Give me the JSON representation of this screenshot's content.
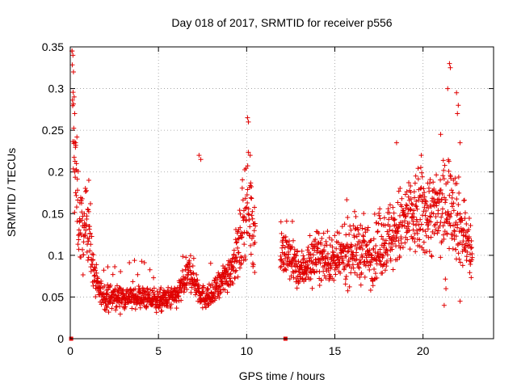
{
  "chart_data": {
    "type": "scatter",
    "title": "Day 018 of 2017, SRMTID for receiver p556",
    "xlabel": "GPS time / hours",
    "ylabel": "SRMTID / TECUs",
    "xlim": [
      0,
      24
    ],
    "ylim": [
      0,
      0.35
    ],
    "x_ticks": [
      {
        "value": 0,
        "label": "0"
      },
      {
        "value": 5,
        "label": "5"
      },
      {
        "value": 10,
        "label": "10"
      },
      {
        "value": 15,
        "label": "15"
      },
      {
        "value": 20,
        "label": "20"
      }
    ],
    "y_ticks": [
      {
        "value": 0,
        "label": "0"
      },
      {
        "value": 0.05,
        "label": "0.05"
      },
      {
        "value": 0.1,
        "label": "0.1"
      },
      {
        "value": 0.15,
        "label": "0.15"
      },
      {
        "value": 0.2,
        "label": "0.2"
      },
      {
        "value": 0.25,
        "label": "0.25"
      },
      {
        "value": 0.3,
        "label": "0.3"
      },
      {
        "value": 0.35,
        "label": "0.35"
      }
    ],
    "grid": true,
    "marker": "+",
    "series_color": "#e00000",
    "data_gap_hours": [
      10.5,
      11.9
    ],
    "zero_markers_x": [
      0.05,
      12.2
    ],
    "trend_profile": {
      "x": [
        0.0,
        0.1,
        0.2,
        0.5,
        0.8,
        1.0,
        1.2,
        1.5,
        2.0,
        3.0,
        4.0,
        5.0,
        6.0,
        6.8,
        7.5,
        8.0,
        9.0,
        9.6,
        10.0,
        10.4,
        11.9,
        12.3,
        13.0,
        14.0,
        15.0,
        16.0,
        17.0,
        18.0,
        19.0,
        20.0,
        21.0,
        21.6,
        22.0,
        22.4,
        22.8
      ],
      "y": [
        0.15,
        0.3,
        0.22,
        0.14,
        0.12,
        0.15,
        0.1,
        0.06,
        0.05,
        0.05,
        0.05,
        0.045,
        0.05,
        0.08,
        0.05,
        0.05,
        0.08,
        0.11,
        0.17,
        0.13,
        0.11,
        0.1,
        0.08,
        0.1,
        0.09,
        0.11,
        0.1,
        0.12,
        0.14,
        0.15,
        0.15,
        0.17,
        0.14,
        0.12,
        0.1
      ]
    },
    "spikes": [
      {
        "x": 0.1,
        "y": 0.345
      },
      {
        "x": 0.15,
        "y": 0.34
      },
      {
        "x": 0.18,
        "y": 0.32
      },
      {
        "x": 0.22,
        "y": 0.29
      },
      {
        "x": 0.25,
        "y": 0.27
      },
      {
        "x": 0.3,
        "y": 0.235
      },
      {
        "x": 0.35,
        "y": 0.21
      },
      {
        "x": 1.05,
        "y": 0.19
      },
      {
        "x": 7.3,
        "y": 0.22
      },
      {
        "x": 7.4,
        "y": 0.215
      },
      {
        "x": 10.05,
        "y": 0.265
      },
      {
        "x": 10.1,
        "y": 0.26
      },
      {
        "x": 10.2,
        "y": 0.22
      },
      {
        "x": 18.5,
        "y": 0.235
      },
      {
        "x": 19.9,
        "y": 0.22
      },
      {
        "x": 21.5,
        "y": 0.33
      },
      {
        "x": 21.55,
        "y": 0.325
      },
      {
        "x": 21.4,
        "y": 0.3
      },
      {
        "x": 21.9,
        "y": 0.295
      },
      {
        "x": 22.0,
        "y": 0.28
      },
      {
        "x": 21.95,
        "y": 0.27
      },
      {
        "x": 21.0,
        "y": 0.245
      },
      {
        "x": 22.1,
        "y": 0.235
      },
      {
        "x": 21.3,
        "y": 0.06
      },
      {
        "x": 22.1,
        "y": 0.045
      },
      {
        "x": 21.2,
        "y": 0.04
      }
    ]
  }
}
